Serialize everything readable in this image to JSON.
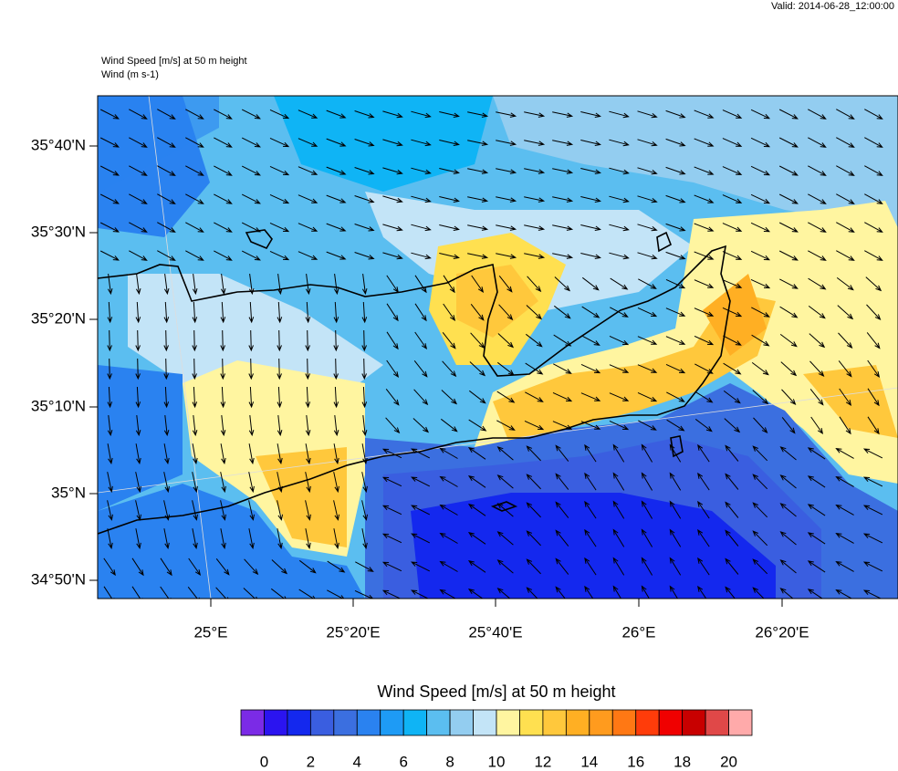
{
  "valid": "Valid: 2014-06-28_12:00:00",
  "title_lines": [
    "Wind Speed [m/s] at 50 m height",
    "Wind   (m s-1)"
  ],
  "lat_labels": [
    "35°40'N",
    "35°30'N",
    "35°20'N",
    "35°10'N",
    "35°N",
    "34°50'N"
  ],
  "lon_labels": [
    "25°E",
    "25°20'E",
    "25°40'E",
    "26°E",
    "26°20'E"
  ],
  "colorbar": {
    "title": "Wind Speed [m/s] at 50 m height",
    "ticks": [
      0,
      2,
      4,
      6,
      8,
      10,
      12,
      14,
      16,
      18,
      20
    ],
    "colors": [
      "#7b2be6",
      "#2b14f0",
      "#1428ee",
      "#3a5ee0",
      "#3b6fe0",
      "#2a82f0",
      "#1e9bf5",
      "#0fb4f5",
      "#5bbef0",
      "#93cdf0",
      "#c3e4f7",
      "#fff5a0",
      "#ffe050",
      "#ffc83c",
      "#ffaf23",
      "#ff9b1e",
      "#ff7814",
      "#ff3c0a",
      "#f00000",
      "#c80000",
      "#e04848",
      "#ffaaaa"
    ]
  }
}
